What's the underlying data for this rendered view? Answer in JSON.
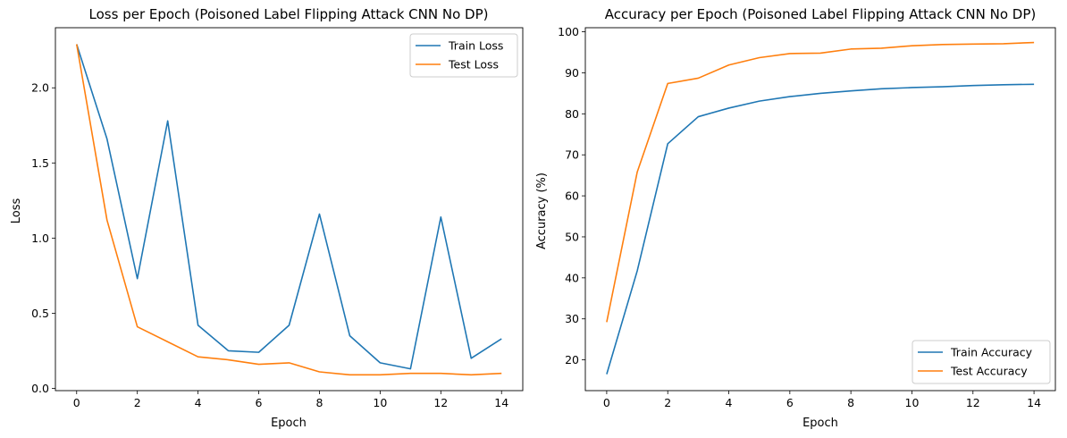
{
  "colors": {
    "train": "#1f77b4",
    "test": "#ff7f0e"
  },
  "chart_data": [
    {
      "type": "line",
      "title": "Loss per Epoch (Poisoned Label Flipping Attack CNN No DP)",
      "xlabel": "Epoch",
      "ylabel": "Loss",
      "xlim": [
        -0.7,
        14.7
      ],
      "ylim": [
        -0.015,
        2.4
      ],
      "xticks": [
        0,
        2,
        4,
        6,
        8,
        10,
        12,
        14
      ],
      "xtick_labels": [
        "0",
        "2",
        "4",
        "6",
        "8",
        "10",
        "12",
        "14"
      ],
      "yticks": [
        0.0,
        0.5,
        1.0,
        1.5,
        2.0
      ],
      "ytick_labels": [
        "0.0",
        "0.5",
        "1.0",
        "1.5",
        "2.0"
      ],
      "legend_position": "top-right",
      "grid": false,
      "x": [
        0,
        1,
        2,
        3,
        4,
        5,
        6,
        7,
        8,
        9,
        10,
        11,
        12,
        13,
        14
      ],
      "series": [
        {
          "name": "Train Loss",
          "color_key": "train",
          "values": [
            2.29,
            1.66,
            0.73,
            1.78,
            0.42,
            0.25,
            0.24,
            0.42,
            1.16,
            0.35,
            0.17,
            0.13,
            1.14,
            0.2,
            0.33
          ]
        },
        {
          "name": "Test Loss",
          "color_key": "test",
          "values": [
            2.29,
            1.12,
            0.41,
            0.31,
            0.21,
            0.19,
            0.16,
            0.17,
            0.11,
            0.09,
            0.09,
            0.1,
            0.1,
            0.09,
            0.1
          ]
        }
      ]
    },
    {
      "type": "line",
      "title": "Accuracy per Epoch (Poisoned Label Flipping Attack CNN No DP)",
      "xlabel": "Epoch",
      "ylabel": "Accuracy (%)",
      "xlim": [
        -0.7,
        14.7
      ],
      "ylim": [
        12.5,
        101
      ],
      "xticks": [
        0,
        2,
        4,
        6,
        8,
        10,
        12,
        14
      ],
      "xtick_labels": [
        "0",
        "2",
        "4",
        "6",
        "8",
        "10",
        "12",
        "14"
      ],
      "yticks": [
        20,
        30,
        40,
        50,
        60,
        70,
        80,
        90,
        100
      ],
      "ytick_labels": [
        "20",
        "30",
        "40",
        "50",
        "60",
        "70",
        "80",
        "90",
        "100"
      ],
      "legend_position": "bottom-right",
      "grid": false,
      "x": [
        0,
        1,
        2,
        3,
        4,
        5,
        6,
        7,
        8,
        9,
        10,
        11,
        12,
        13,
        14
      ],
      "series": [
        {
          "name": "Train Accuracy",
          "color_key": "train",
          "values": [
            16.5,
            41.7,
            72.7,
            79.3,
            81.4,
            83.1,
            84.2,
            85.0,
            85.6,
            86.1,
            86.4,
            86.6,
            86.9,
            87.1,
            87.2
          ]
        },
        {
          "name": "Test Accuracy",
          "color_key": "test",
          "values": [
            29.2,
            65.8,
            87.4,
            88.7,
            91.9,
            93.7,
            94.7,
            94.8,
            95.8,
            96.0,
            96.6,
            96.9,
            97.0,
            97.1,
            97.4
          ]
        }
      ]
    }
  ]
}
